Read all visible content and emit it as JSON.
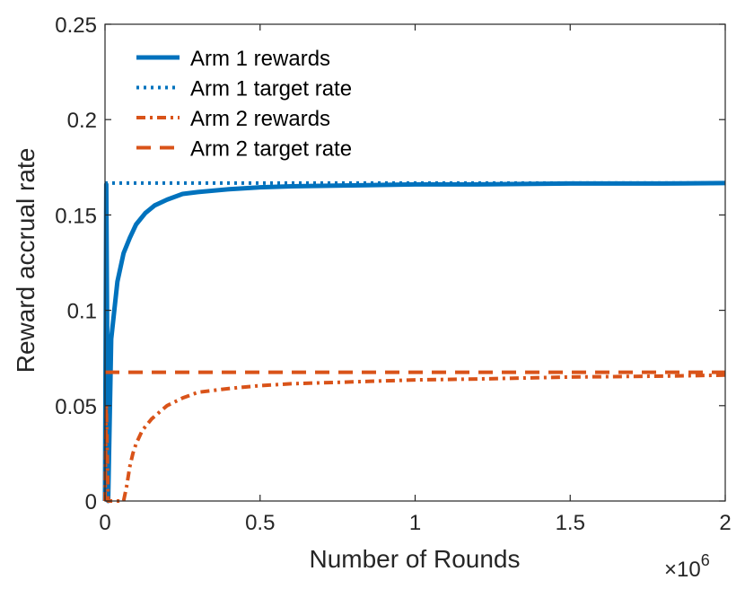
{
  "chart_data": {
    "type": "line",
    "title": "",
    "xlabel": "Number of Rounds",
    "ylabel": "Reward accrual rate",
    "x_multiplier_label": "×10",
    "x_multiplier_exponent": "6",
    "xlim": [
      0,
      2000000
    ],
    "ylim": [
      0,
      0.25
    ],
    "x_ticks": [
      0,
      500000,
      1000000,
      1500000,
      2000000
    ],
    "x_tick_labels": [
      "0",
      "0.5",
      "1",
      "1.5",
      "2"
    ],
    "y_ticks": [
      0,
      0.05,
      0.1,
      0.15,
      0.2,
      0.25
    ],
    "y_tick_labels": [
      "0",
      "0.05",
      "0.1",
      "0.15",
      "0.2",
      "0.25"
    ],
    "grid": false,
    "legend_position": "top-left",
    "series": [
      {
        "name": "Arm 1 rewards",
        "color": "#0072BD",
        "style": "solid",
        "x": [
          0,
          4000,
          10000,
          20000,
          40000,
          60000,
          80000,
          100000,
          130000,
          160000,
          200000,
          250000,
          300000,
          400000,
          500000,
          600000,
          800000,
          1000000,
          1200000,
          1500000,
          1800000,
          2000000
        ],
        "y": [
          0.0,
          0.166,
          0.0,
          0.085,
          0.115,
          0.13,
          0.138,
          0.145,
          0.151,
          0.155,
          0.158,
          0.161,
          0.162,
          0.1635,
          0.1645,
          0.165,
          0.1655,
          0.166,
          0.166,
          0.1665,
          0.1665,
          0.1667
        ]
      },
      {
        "name": "Arm 1 target rate",
        "color": "#0072BD",
        "style": "dotted",
        "x": [
          0,
          2000000
        ],
        "y": [
          0.1667,
          0.1667
        ]
      },
      {
        "name": "Arm 2 rewards",
        "color": "#D95319",
        "style": "dashdot",
        "x": [
          0,
          4000,
          10000,
          20000,
          40000,
          60000,
          70000,
          80000,
          90000,
          100000,
          120000,
          150000,
          200000,
          250000,
          300000,
          400000,
          500000,
          600000,
          800000,
          1000000,
          1200000,
          1500000,
          1800000,
          2000000
        ],
        "y": [
          0.0,
          0.05,
          0.0,
          0.0,
          0.0,
          0.0,
          0.008,
          0.018,
          0.025,
          0.03,
          0.037,
          0.043,
          0.05,
          0.054,
          0.057,
          0.059,
          0.0605,
          0.0615,
          0.0625,
          0.0635,
          0.064,
          0.065,
          0.0655,
          0.066
        ]
      },
      {
        "name": "Arm 2 target rate",
        "color": "#D95319",
        "style": "dashed",
        "x": [
          0,
          2000000
        ],
        "y": [
          0.0675,
          0.0675
        ]
      }
    ]
  }
}
